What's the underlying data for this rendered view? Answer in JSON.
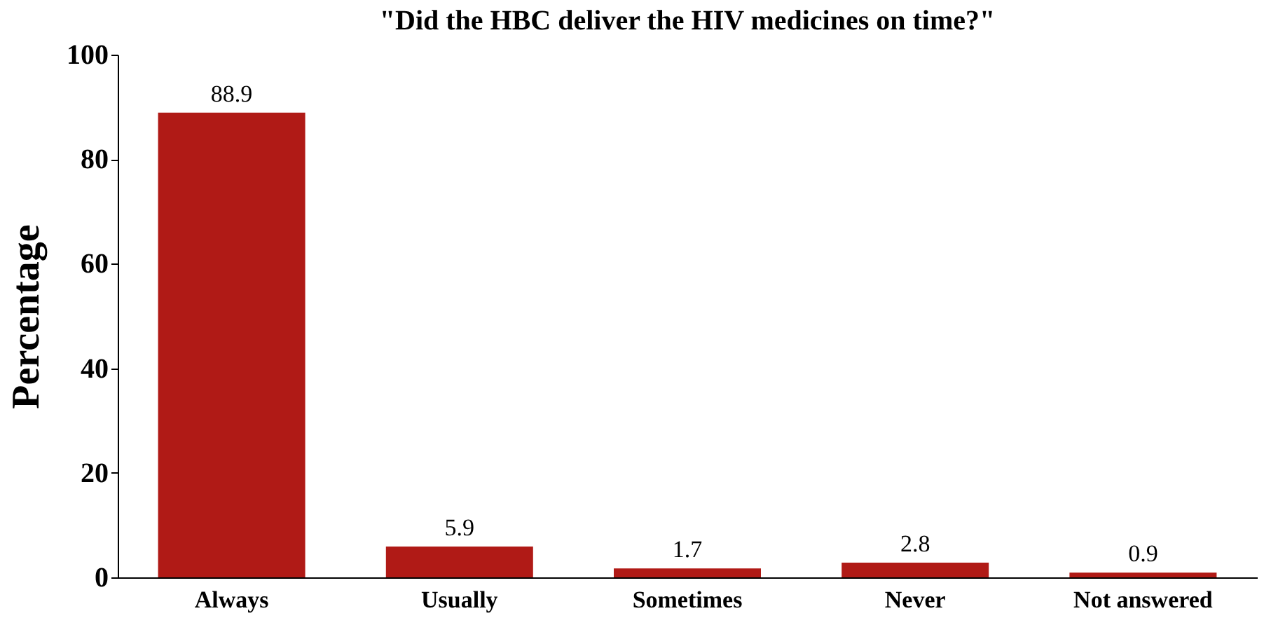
{
  "chart_data": {
    "type": "bar",
    "title": "\"Did the HBC deliver the HIV medicines on time?\"",
    "ylabel": "Percentage",
    "categories": [
      "Always",
      "Usually",
      "Sometimes",
      "Never",
      "Not answered"
    ],
    "values": [
      88.9,
      5.9,
      1.7,
      2.8,
      0.9
    ],
    "color": "#b01a16",
    "ylim": [
      0,
      100
    ],
    "yticks": [
      0,
      20,
      40,
      60,
      80,
      100
    ],
    "grid": false,
    "data_labels": true
  }
}
